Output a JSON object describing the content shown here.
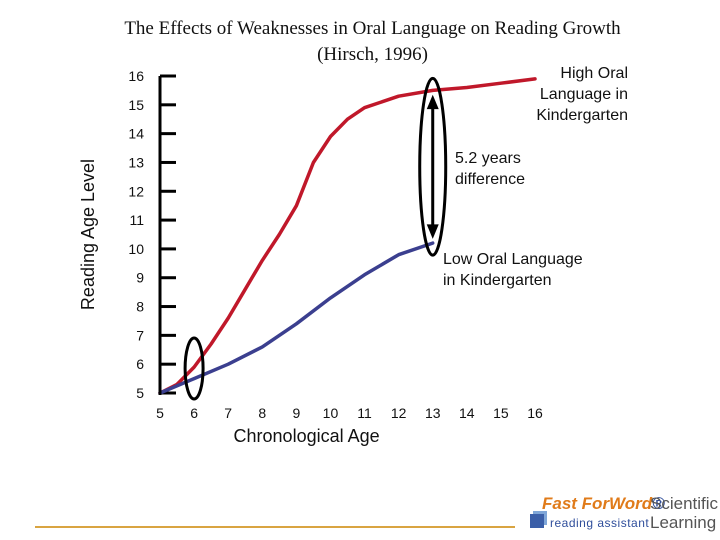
{
  "title_line1": "The Effects of Weaknesses in Oral Language on Reading Growth",
  "title_line2": "(Hirsch, 1996)",
  "logo": {
    "fast_forword": "Fast ForWord",
    "reading_assistant": "reading assistant",
    "scientific_learning": "Scientific Learning"
  },
  "colors": {
    "high": "#c0182a",
    "low": "#3b3f8f",
    "footer": "#d9a441"
  },
  "chart_data": {
    "type": "line",
    "xlabel": "Chronological Age",
    "ylabel": "Reading Age Level",
    "xlim": [
      5,
      16
    ],
    "ylim": [
      5,
      16
    ],
    "x_ticks": [
      5,
      6,
      7,
      8,
      9,
      10,
      11,
      12,
      13,
      14,
      15,
      16
    ],
    "y_ticks": [
      5,
      6,
      7,
      8,
      9,
      10,
      11,
      12,
      13,
      14,
      15,
      16
    ],
    "series": [
      {
        "name": "High Oral Language in Kindergarten",
        "color": "#c0182a",
        "x": [
          5,
          5.5,
          6,
          6.5,
          7,
          7.5,
          8,
          8.5,
          9,
          9.5,
          10,
          10.5,
          11,
          12,
          13,
          14,
          15,
          16
        ],
        "y": [
          5,
          5.3,
          5.9,
          6.7,
          7.6,
          8.6,
          9.6,
          10.5,
          11.5,
          13.0,
          13.9,
          14.5,
          14.9,
          15.3,
          15.5,
          15.6,
          15.75,
          15.9
        ]
      },
      {
        "name": "Low Oral Language in Kindergarten",
        "color": "#3b3f8f",
        "x": [
          5,
          6,
          7,
          8,
          9,
          10,
          11,
          12,
          13
        ],
        "y": [
          5,
          5.5,
          6.0,
          6.6,
          7.4,
          8.3,
          9.1,
          9.8,
          10.2
        ]
      }
    ],
    "annotations": {
      "high_label": "High Oral Language in Kindergarten",
      "difference_label": "5.2 years difference",
      "low_label": "Low Oral Language in Kindergarten"
    }
  }
}
